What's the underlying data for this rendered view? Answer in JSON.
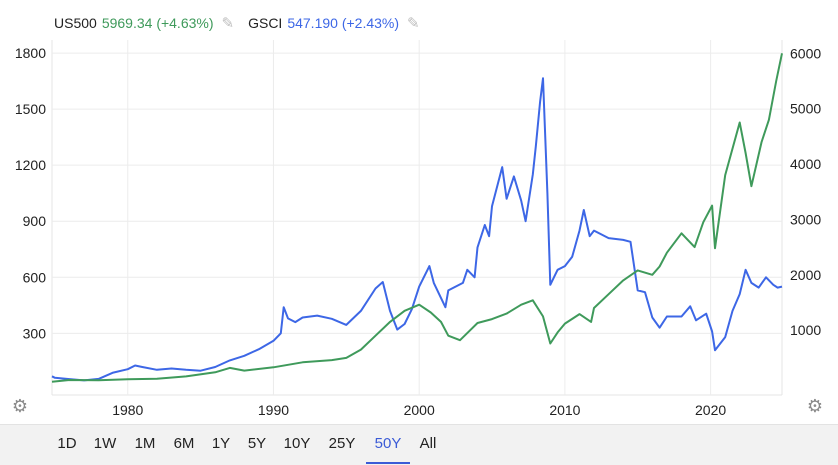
{
  "legend": [
    {
      "name": "US500",
      "value": "5969.34",
      "change": "(+4.63%)",
      "color": "#3f9a5b",
      "icon": "pencil-icon"
    },
    {
      "name": "GSCI",
      "value": "547.190",
      "change": "(+2.43%)",
      "color": "#3d67e6",
      "icon": "pencil-icon"
    }
  ],
  "chart_data": {
    "type": "line",
    "x_axis": {
      "ticks": [
        "1980",
        "1990",
        "2000",
        "2010",
        "2020"
      ],
      "range": [
        1974.8,
        2024.9
      ]
    },
    "y_left": {
      "ticks": [
        "300",
        "600",
        "900",
        "1200",
        "1500",
        "1800"
      ],
      "range": [
        -30,
        1870
      ],
      "series": "GSCI"
    },
    "y_right": {
      "ticks": [
        "1000",
        "2000",
        "3000",
        "4000",
        "5000",
        "6000"
      ],
      "range": [
        -170,
        6240
      ],
      "series": "US500"
    },
    "grid": true,
    "series": [
      {
        "name": "GSCI",
        "color": "#3d67e6",
        "axis": "left",
        "points": [
          [
            1974.8,
            70
          ],
          [
            1975,
            62
          ],
          [
            1976,
            55
          ],
          [
            1977,
            48
          ],
          [
            1978,
            56
          ],
          [
            1979,
            90
          ],
          [
            1980,
            108
          ],
          [
            1980.5,
            128
          ],
          [
            1981,
            120
          ],
          [
            1982,
            105
          ],
          [
            1983,
            112
          ],
          [
            1984,
            105
          ],
          [
            1985,
            100
          ],
          [
            1986,
            120
          ],
          [
            1987,
            155
          ],
          [
            1988,
            180
          ],
          [
            1989,
            215
          ],
          [
            1990,
            260
          ],
          [
            1990.5,
            300
          ],
          [
            1990.7,
            440
          ],
          [
            1991,
            380
          ],
          [
            1991.5,
            360
          ],
          [
            1992,
            385
          ],
          [
            1993,
            395
          ],
          [
            1994,
            378
          ],
          [
            1995,
            345
          ],
          [
            1996,
            420
          ],
          [
            1997,
            540
          ],
          [
            1997.5,
            575
          ],
          [
            1998,
            420
          ],
          [
            1998.5,
            320
          ],
          [
            1999,
            350
          ],
          [
            1999.5,
            430
          ],
          [
            2000,
            550
          ],
          [
            2000.7,
            660
          ],
          [
            2001,
            570
          ],
          [
            2001.8,
            440
          ],
          [
            2002,
            530
          ],
          [
            2003,
            570
          ],
          [
            2003.3,
            640
          ],
          [
            2003.8,
            600
          ],
          [
            2004,
            760
          ],
          [
            2004.5,
            880
          ],
          [
            2004.8,
            820
          ],
          [
            2005,
            980
          ],
          [
            2005.7,
            1190
          ],
          [
            2006,
            1020
          ],
          [
            2006.5,
            1140
          ],
          [
            2007,
            1010
          ],
          [
            2007.3,
            900
          ],
          [
            2007.8,
            1150
          ],
          [
            2008,
            1300
          ],
          [
            2008.3,
            1540
          ],
          [
            2008.5,
            1665
          ],
          [
            2008.8,
            1050
          ],
          [
            2009,
            560
          ],
          [
            2009.5,
            640
          ],
          [
            2010,
            660
          ],
          [
            2010.5,
            710
          ],
          [
            2011,
            850
          ],
          [
            2011.3,
            960
          ],
          [
            2011.7,
            820
          ],
          [
            2012,
            850
          ],
          [
            2013,
            810
          ],
          [
            2014,
            800
          ],
          [
            2014.5,
            790
          ],
          [
            2015,
            530
          ],
          [
            2015.5,
            520
          ],
          [
            2016,
            385
          ],
          [
            2016.5,
            330
          ],
          [
            2017,
            390
          ],
          [
            2018,
            390
          ],
          [
            2018.6,
            445
          ],
          [
            2019,
            370
          ],
          [
            2019.7,
            405
          ],
          [
            2020.1,
            310
          ],
          [
            2020.3,
            210
          ],
          [
            2021,
            280
          ],
          [
            2021.5,
            420
          ],
          [
            2022,
            510
          ],
          [
            2022.4,
            640
          ],
          [
            2022.8,
            570
          ],
          [
            2023.3,
            545
          ],
          [
            2023.8,
            600
          ],
          [
            2024.3,
            560
          ],
          [
            2024.6,
            545
          ],
          [
            2024.9,
            550
          ]
        ]
      },
      {
        "name": "US500",
        "color": "#3f9a5b",
        "axis": "right",
        "points": [
          [
            1974.8,
            70
          ],
          [
            1976,
            100
          ],
          [
            1978,
            95
          ],
          [
            1980,
            115
          ],
          [
            1982,
            125
          ],
          [
            1984,
            165
          ],
          [
            1986,
            240
          ],
          [
            1987,
            320
          ],
          [
            1988,
            270
          ],
          [
            1990,
            330
          ],
          [
            1992,
            420
          ],
          [
            1994,
            460
          ],
          [
            1995,
            500
          ],
          [
            1996,
            650
          ],
          [
            1997,
            900
          ],
          [
            1998,
            1150
          ],
          [
            1999,
            1350
          ],
          [
            2000,
            1460
          ],
          [
            2000.8,
            1320
          ],
          [
            2001.5,
            1150
          ],
          [
            2002,
            900
          ],
          [
            2002.8,
            820
          ],
          [
            2003.5,
            1000
          ],
          [
            2004,
            1130
          ],
          [
            2005,
            1200
          ],
          [
            2006,
            1300
          ],
          [
            2007,
            1460
          ],
          [
            2007.8,
            1540
          ],
          [
            2008.5,
            1250
          ],
          [
            2009,
            760
          ],
          [
            2009.5,
            960
          ],
          [
            2010,
            1120
          ],
          [
            2011,
            1290
          ],
          [
            2011.8,
            1150
          ],
          [
            2012,
            1400
          ],
          [
            2013,
            1650
          ],
          [
            2014,
            1900
          ],
          [
            2015,
            2080
          ],
          [
            2016,
            2000
          ],
          [
            2016.5,
            2150
          ],
          [
            2017,
            2400
          ],
          [
            2018,
            2750
          ],
          [
            2018.9,
            2500
          ],
          [
            2019.5,
            2950
          ],
          [
            2020.1,
            3250
          ],
          [
            2020.3,
            2480
          ],
          [
            2021,
            3800
          ],
          [
            2022,
            4750
          ],
          [
            2022.4,
            4200
          ],
          [
            2022.8,
            3600
          ],
          [
            2023.5,
            4400
          ],
          [
            2024,
            4800
          ],
          [
            2024.5,
            5500
          ],
          [
            2024.9,
            6000
          ]
        ]
      }
    ]
  },
  "toolbar": {
    "ranges": [
      "1D",
      "1W",
      "1M",
      "6M",
      "1Y",
      "5Y",
      "10Y",
      "25Y",
      "50Y",
      "All"
    ],
    "active": "50Y"
  },
  "icons": {
    "left_settings": "gear-icon",
    "right_settings": "gear-icon"
  }
}
